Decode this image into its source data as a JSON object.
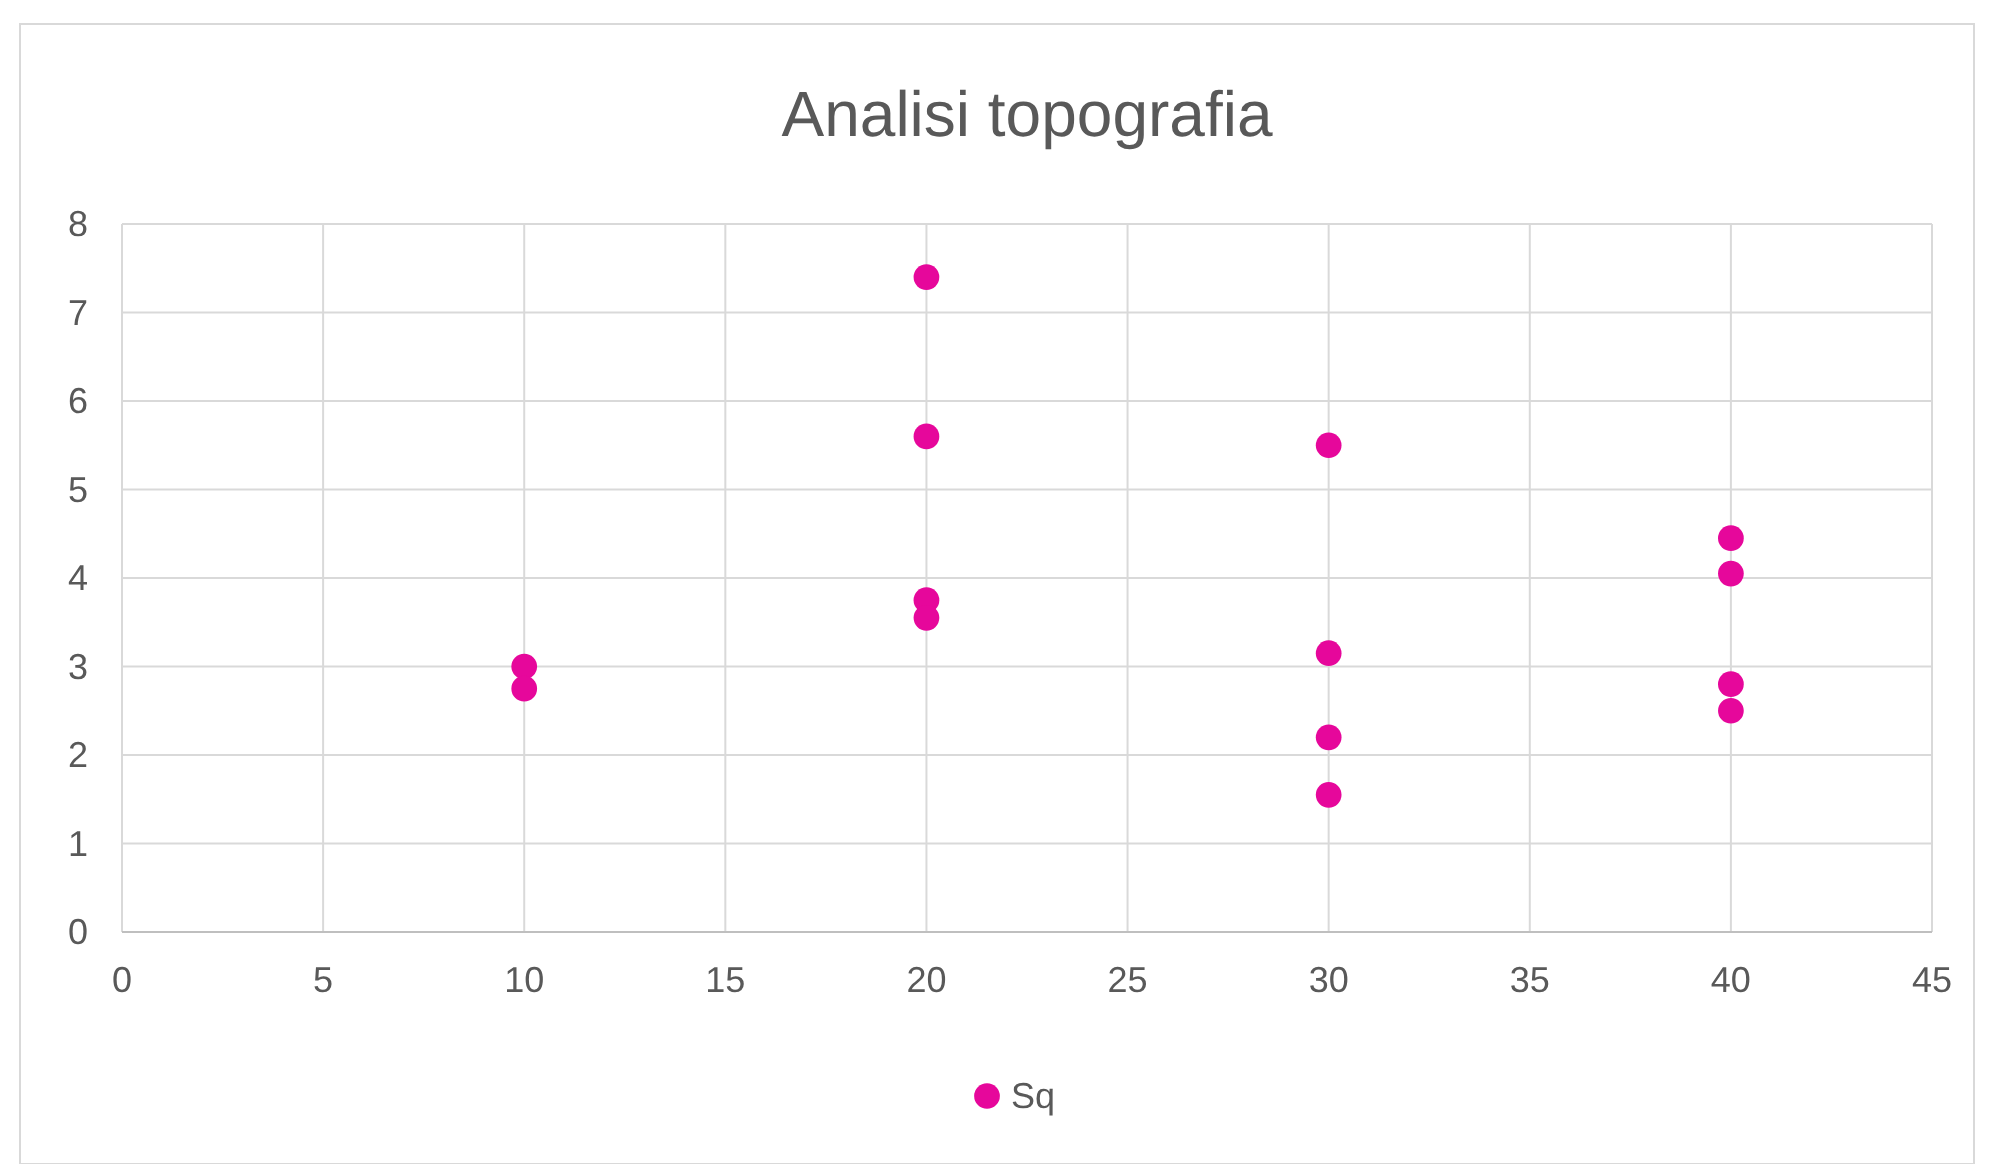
{
  "chart_data": {
    "type": "scatter",
    "title": "Analisi topografia",
    "series": [
      {
        "name": "Sq",
        "color": "#e6079b",
        "x": [
          10,
          10,
          20,
          20,
          20,
          20,
          30,
          30,
          30,
          30,
          40,
          40,
          40,
          40
        ],
        "values": [
          3.0,
          2.75,
          7.4,
          5.6,
          3.75,
          3.55,
          5.5,
          3.15,
          2.2,
          1.55,
          4.45,
          4.05,
          2.8,
          2.5
        ]
      }
    ],
    "xlim": [
      0,
      45
    ],
    "xticks": [
      0,
      5,
      10,
      15,
      20,
      25,
      30,
      35,
      40,
      45
    ],
    "ylim": [
      0,
      8
    ],
    "yticks": [
      0,
      1,
      2,
      3,
      4,
      5,
      6,
      7,
      8
    ],
    "grid": true,
    "legend": "bottom",
    "marker": "circle"
  }
}
